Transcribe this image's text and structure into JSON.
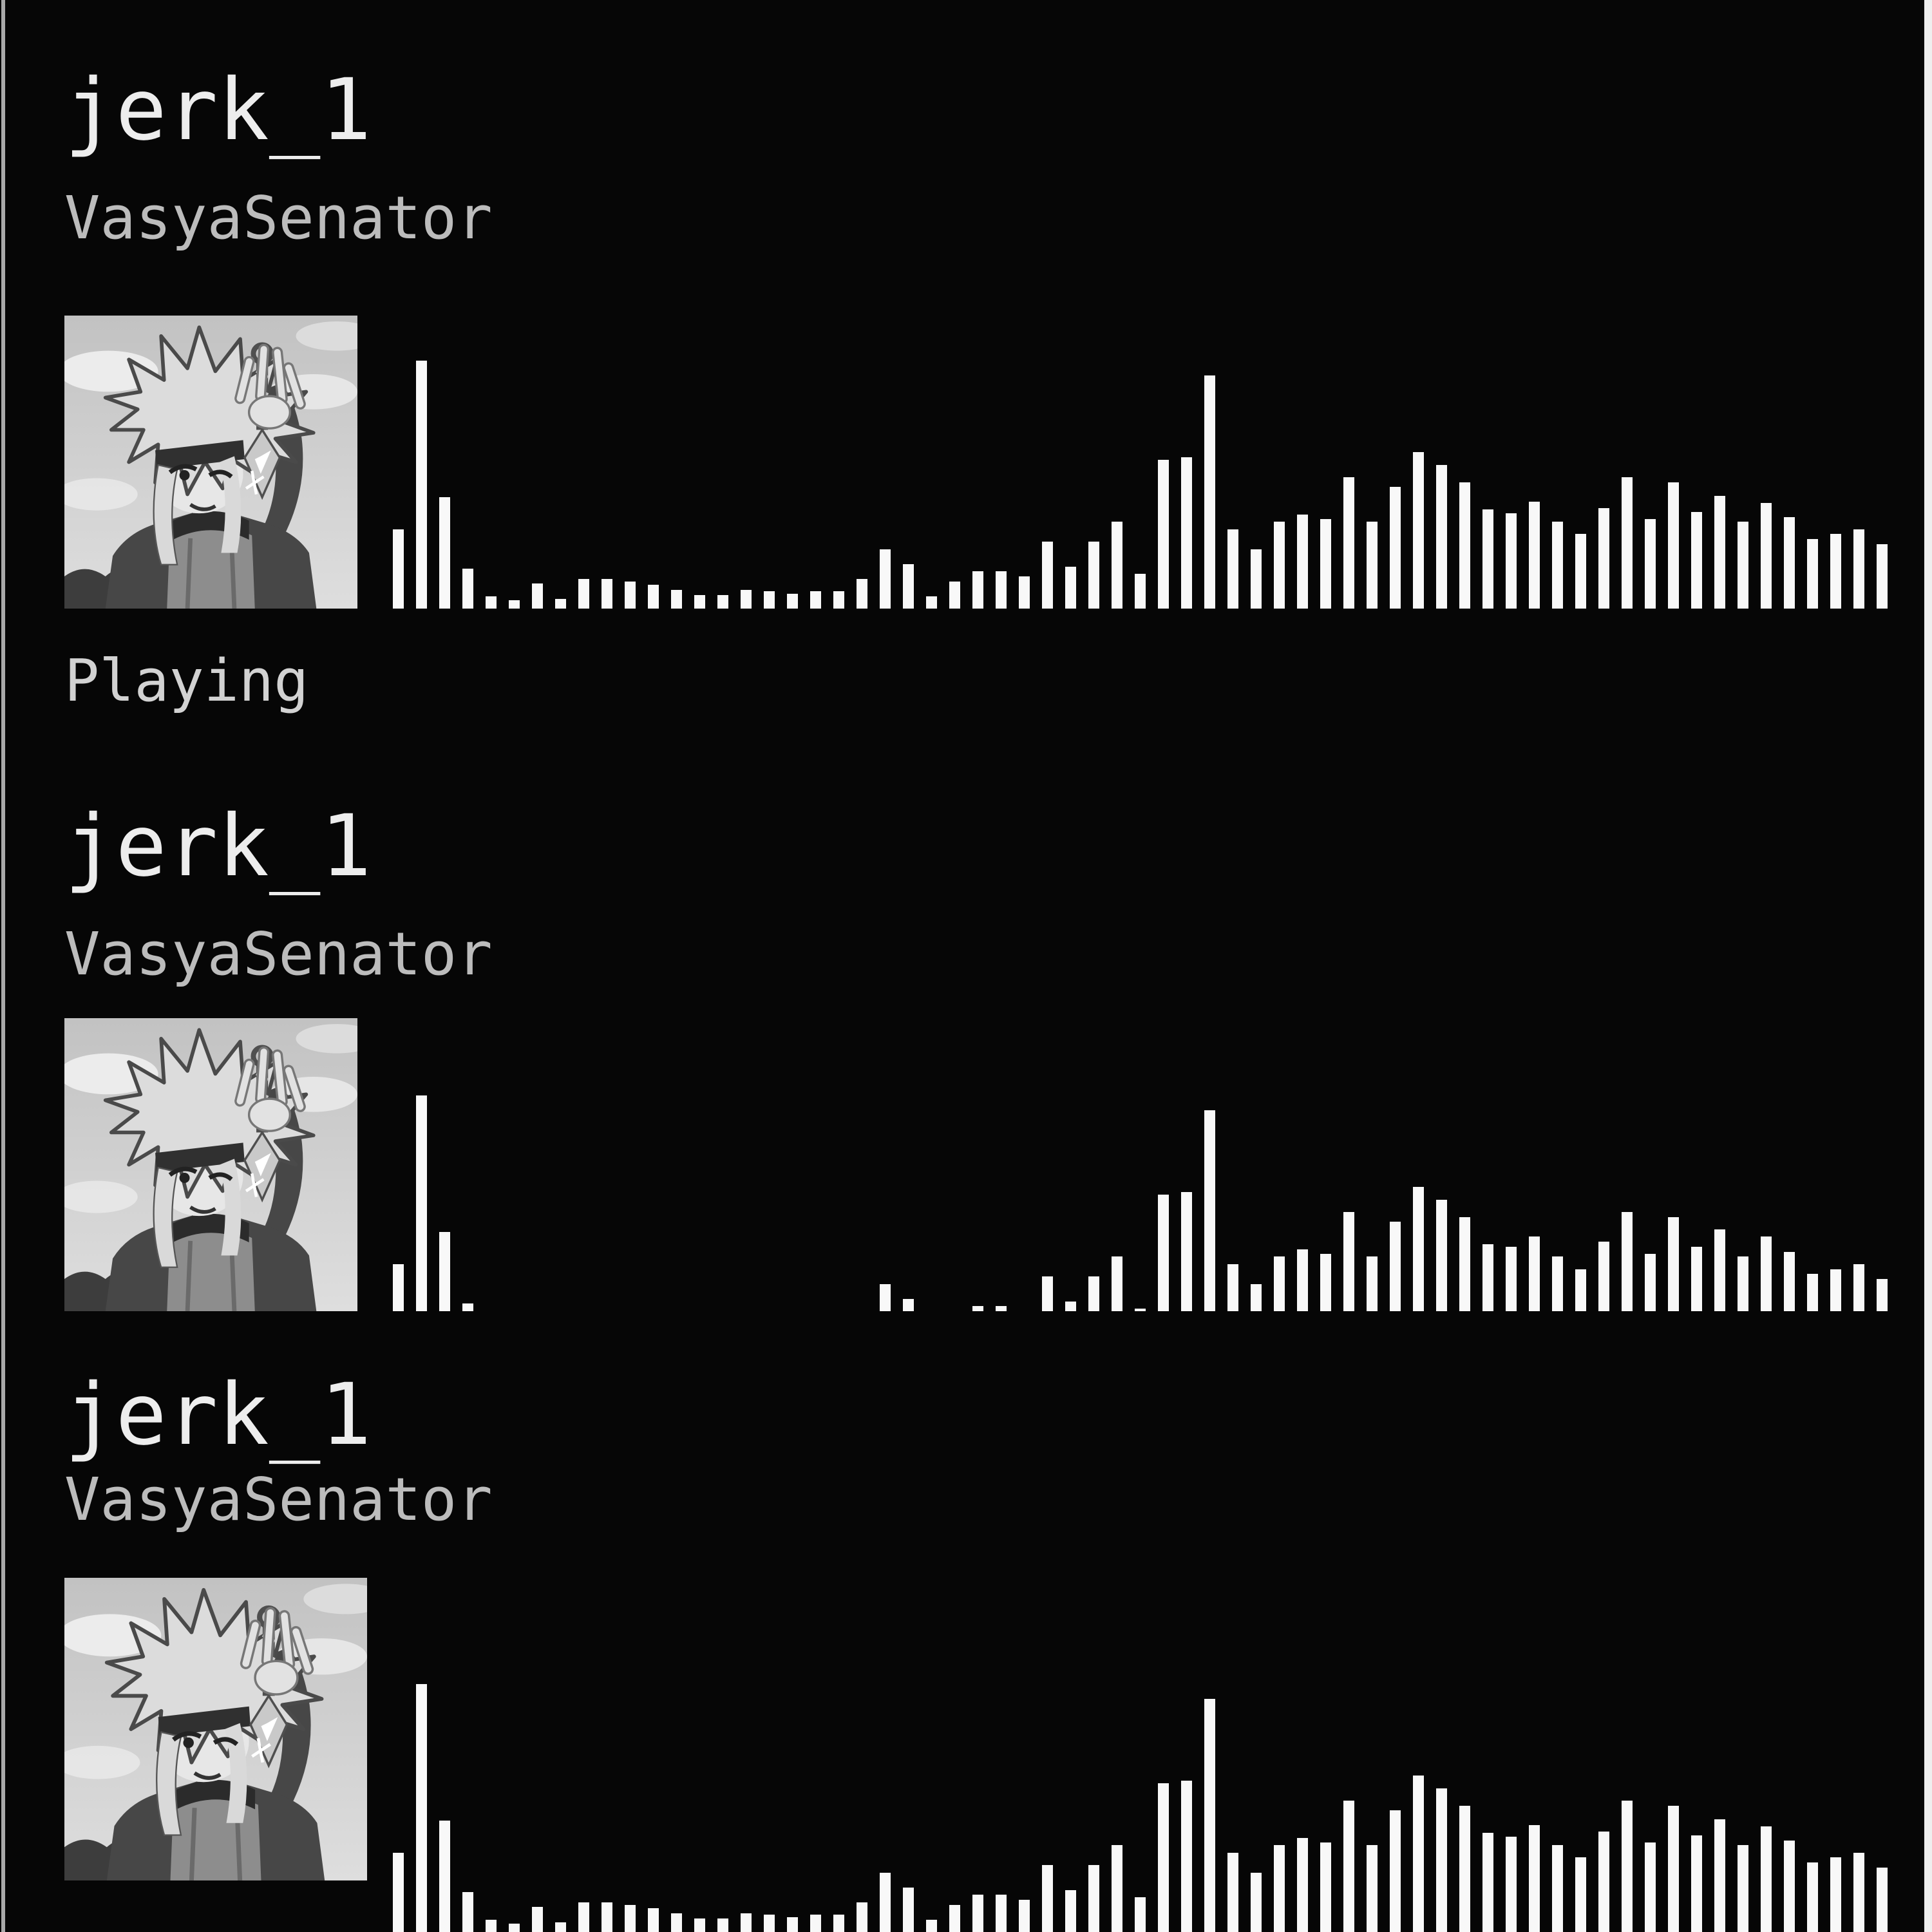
{
  "page": {
    "background": "#060606",
    "left_border_color": "#a9a9a9",
    "right_border_color": "#efefef",
    "bar_color": "#f8f8f8"
  },
  "sections": [
    {
      "title": "jerk_1",
      "artist": "VasyaSenator",
      "status": "Playing",
      "album_icon": "minato-grayscale-artwork"
    },
    {
      "title": "jerk_1",
      "artist": "VasyaSenator",
      "status": "",
      "album_icon": "minato-grayscale-artwork"
    },
    {
      "title": "jerk_1",
      "artist": "VasyaSenator",
      "status": "",
      "album_icon": "minato-grayscale-artwork"
    }
  ],
  "waveforms": [
    {
      "name": "waveform-track-playing",
      "values": [
        0.32,
        1.0,
        0.45,
        0.16,
        0.05,
        0.035,
        0.1,
        0.04,
        0.12,
        0.12,
        0.11,
        0.095,
        0.075,
        0.055,
        0.055,
        0.075,
        0.07,
        0.06,
        0.07,
        0.07,
        0.12,
        0.24,
        0.18,
        0.05,
        0.11,
        0.15,
        0.15,
        0.13,
        0.27,
        0.17,
        0.27,
        0.35,
        0.14,
        0.6,
        0.61,
        0.94,
        0.32,
        0.24,
        0.35,
        0.38,
        0.36,
        0.53,
        0.35,
        0.49,
        0.63,
        0.58,
        0.51,
        0.4,
        0.385,
        0.43,
        0.35,
        0.3,
        0.405,
        0.53,
        0.36,
        0.51,
        0.39,
        0.455,
        0.35,
        0.425,
        0.37,
        0.28,
        0.3,
        0.32,
        0.26
      ]
    },
    {
      "name": "waveform-track-rising",
      "values": [
        0.19,
        0.87,
        0.32,
        0.03,
        0,
        0,
        0,
        0,
        0,
        0,
        0,
        0,
        0,
        0,
        0,
        0,
        0,
        0,
        0,
        0,
        0,
        0.11,
        0.05,
        0,
        0,
        0.02,
        0.02,
        0,
        0.14,
        0.04,
        0.14,
        0.22,
        0.01,
        0.47,
        0.48,
        0.81,
        0.19,
        0.11,
        0.22,
        0.25,
        0.23,
        0.4,
        0.22,
        0.36,
        0.5,
        0.45,
        0.38,
        0.27,
        0.26,
        0.3,
        0.22,
        0.17,
        0.28,
        0.4,
        0.23,
        0.38,
        0.26,
        0.33,
        0.22,
        0.3,
        0.24,
        0.15,
        0.17,
        0.19,
        0.13
      ]
    },
    {
      "name": "waveform-track-queued",
      "values": [
        0.32,
        1.0,
        0.45,
        0.16,
        0.05,
        0.035,
        0.1,
        0.04,
        0.12,
        0.12,
        0.11,
        0.095,
        0.075,
        0.055,
        0.055,
        0.075,
        0.07,
        0.06,
        0.07,
        0.07,
        0.12,
        0.24,
        0.18,
        0.05,
        0.11,
        0.15,
        0.15,
        0.13,
        0.27,
        0.17,
        0.27,
        0.35,
        0.14,
        0.6,
        0.61,
        0.94,
        0.32,
        0.24,
        0.35,
        0.38,
        0.36,
        0.53,
        0.35,
        0.49,
        0.63,
        0.58,
        0.51,
        0.4,
        0.385,
        0.43,
        0.35,
        0.3,
        0.405,
        0.53,
        0.36,
        0.51,
        0.39,
        0.455,
        0.35,
        0.425,
        0.37,
        0.28,
        0.3,
        0.32,
        0.26
      ]
    }
  ]
}
